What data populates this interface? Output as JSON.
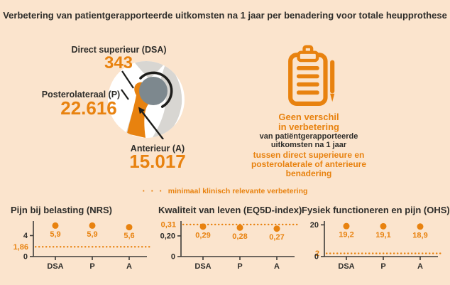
{
  "title": "Verbetering van patientgerapporteerde uitkomsten na 1 jaar per benadering voor totale heupprothese",
  "approaches": [
    {
      "label": "Direct superieur (DSA)",
      "value": "343"
    },
    {
      "label": "Posterolateraal (P)",
      "value": "22.616"
    },
    {
      "label": "Anterieur (A)",
      "value": "15.017"
    }
  ],
  "message": {
    "headline_line1": "Geen verschil",
    "headline_line2": "in verbetering",
    "body_line1": "van patiëntgerapporteerde",
    "body_line2": "uitkomsten na 1 jaar",
    "emphasis_line1": "tussen direct superieure en",
    "emphasis_line2": "posterolaterale of anterieure benadering"
  },
  "legend": {
    "marker": "· · ·",
    "text": "minimaal klinisch relevante verbetering"
  },
  "colors": {
    "accent": "#e8820f",
    "background": "#fbe4cd",
    "text": "#2e2d2a",
    "axis": "#3e3c39",
    "ball_gray": "#7d888e",
    "light_gray": "#d8d6d2",
    "line_black": "#1d1d1b"
  },
  "chart_data": [
    {
      "type": "scatter",
      "title": "Pijn bij belasting (NRS)",
      "categories": [
        "DSA",
        "P",
        "A"
      ],
      "values": [
        5.9,
        5.9,
        5.6
      ],
      "value_labels": [
        "5,9",
        "5,9",
        "5,6"
      ],
      "ylim": [
        0,
        6.5
      ],
      "yticks": [
        {
          "value": 0,
          "label": "0"
        },
        {
          "value": 4,
          "label": "4"
        }
      ],
      "reference_line": {
        "value": 1.86,
        "label": "1,86"
      },
      "legend_note": "dotted line = minimaal klinisch relevante verbetering",
      "grid": false
    },
    {
      "type": "scatter",
      "title": "Kwaliteit van leven (EQ5D-index)",
      "categories": [
        "DSA",
        "P",
        "A"
      ],
      "values": [
        0.29,
        0.28,
        0.27
      ],
      "value_labels": [
        "0,29",
        "0,28",
        "0,27"
      ],
      "ylim": [
        0,
        0.33
      ],
      "yticks": [
        {
          "value": 0,
          "label": "0"
        },
        {
          "value": 0.2,
          "label": "0,20"
        }
      ],
      "reference_line": {
        "value": 0.31,
        "label": "0,31"
      },
      "legend_note": "dotted line = minimaal klinisch relevante verbetering",
      "grid": false
    },
    {
      "type": "scatter",
      "title": "Fysiek functioneren en pijn (OHS)",
      "categories": [
        "DSA",
        "P",
        "A"
      ],
      "values": [
        19.2,
        19.1,
        18.9
      ],
      "value_labels": [
        "19,2",
        "19,1",
        "18,9"
      ],
      "ylim": [
        0,
        21.5
      ],
      "yticks": [
        {
          "value": 0,
          "label": "0"
        },
        {
          "value": 20,
          "label": "20"
        }
      ],
      "reference_line": {
        "value": 2,
        "label": "2"
      },
      "legend_note": "dotted line = minimaal klinisch relevante verbetering",
      "grid": false
    }
  ]
}
